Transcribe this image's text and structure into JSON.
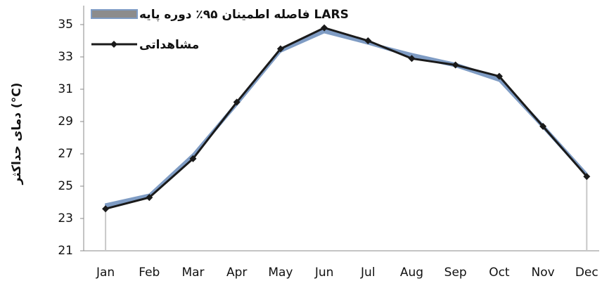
{
  "chart_data": {
    "type": "line",
    "y_label": "دمای حداکثر (°C)",
    "categories": [
      "Jan",
      "Feb",
      "Mar",
      "Apr",
      "May",
      "Jun",
      "Jul",
      "Aug",
      "Sep",
      "Oct",
      "Nov",
      "Dec"
    ],
    "band": {
      "name": "فاصله اطمینان ۹۵٪ دوره پایه LARS",
      "color": "#7f9cc4",
      "lower": [
        23.7,
        24.3,
        26.8,
        30.0,
        33.3,
        34.5,
        33.8,
        33.0,
        32.4,
        31.5,
        28.6,
        25.6
      ],
      "upper": [
        23.9,
        24.5,
        27.0,
        30.2,
        33.5,
        34.7,
        33.9,
        33.2,
        32.6,
        31.7,
        28.8,
        25.8
      ]
    },
    "series": [
      {
        "name": "مشاهداتی",
        "color": "#1a1a1a",
        "values": [
          23.6,
          24.3,
          26.7,
          30.2,
          33.5,
          34.8,
          34.0,
          32.9,
          32.5,
          31.8,
          28.7,
          25.6
        ]
      }
    ],
    "ylim": [
      21,
      35
    ],
    "yticks": [
      21,
      23,
      25,
      27,
      29,
      31,
      33,
      35
    ],
    "grid": false
  }
}
